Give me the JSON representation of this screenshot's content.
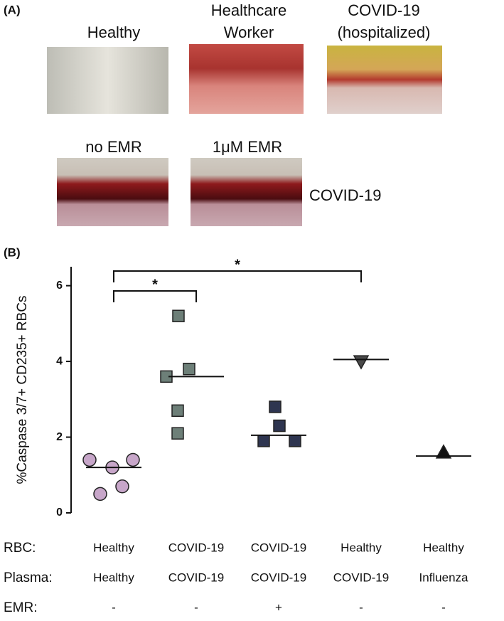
{
  "panel_a": {
    "label": "(A)",
    "photos_top": [
      {
        "caption": [
          "Healthy"
        ]
      },
      {
        "caption": [
          "Healthcare",
          "Worker"
        ]
      },
      {
        "caption": [
          "COVID-19",
          "(hospitalized)"
        ]
      }
    ],
    "photos_bottom": [
      {
        "caption": [
          "no EMR"
        ]
      },
      {
        "caption": [
          "1μM EMR"
        ]
      }
    ],
    "bottom_row_label": "COVID-19"
  },
  "chart_data": {
    "type": "scatter",
    "panel_label": "(B)",
    "ylabel": "%Caspase 3/7+ CD235+ RBCs",
    "ylim": [
      0,
      6.5
    ],
    "yticks": [
      0,
      2,
      4,
      6
    ],
    "grid": false,
    "series": [
      {
        "marker": "circle",
        "color": "#c7a6c9",
        "values": [
          1.4,
          1.2,
          1.4,
          0.5,
          0.7
        ],
        "mean": 1.2
      },
      {
        "marker": "square",
        "color": "#6d7f78",
        "values": [
          5.2,
          3.6,
          3.8,
          2.7,
          2.1
        ],
        "mean": 3.6
      },
      {
        "marker": "square",
        "color": "#2e3550",
        "values": [
          2.8,
          1.9,
          2.3,
          1.9
        ],
        "mean": 2.05
      },
      {
        "marker": "triangle-down",
        "color": "#4a4a4a",
        "values": [
          4.0
        ],
        "mean": 4.05
      },
      {
        "marker": "triangle-up",
        "color": "#111111",
        "values": [
          1.6
        ],
        "mean": 1.5
      }
    ],
    "significance": [
      {
        "text": "*",
        "groups": [
          0,
          1
        ]
      },
      {
        "text": "*",
        "groups": [
          0,
          3
        ]
      }
    ],
    "conditions": [
      {
        "label": "RBC:",
        "values": [
          "Healthy",
          "COVID-19",
          "COVID-19",
          "Healthy",
          "Healthy"
        ]
      },
      {
        "label": "Plasma:",
        "values": [
          "Healthy",
          "COVID-19",
          "COVID-19",
          "COVID-19",
          "Influenza"
        ]
      },
      {
        "label": "EMR:",
        "values": [
          "-",
          "-",
          "+",
          "-",
          "-"
        ]
      }
    ]
  }
}
